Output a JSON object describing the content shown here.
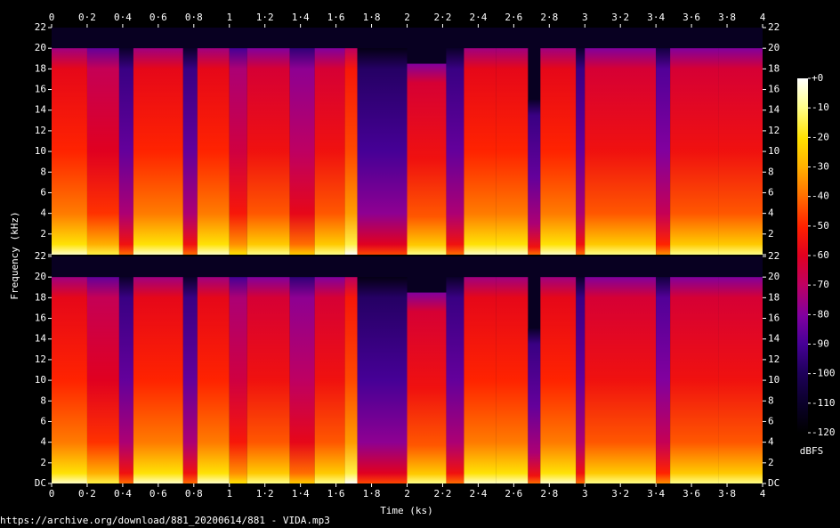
{
  "chart_data": {
    "type": "spectrogram",
    "xlabel": "Time (ks)",
    "ylabel": "Frequency (kHz)",
    "colorbar_label": "dBFS",
    "footer": "https://archive.org/download/881_20200614/881 - VIDA.mp3",
    "xlim": [
      0,
      4
    ],
    "xticks": [
      0,
      {
        "value": 0.2,
        "label": "0·2"
      },
      {
        "value": 0.4,
        "label": "0·4"
      },
      {
        "value": 0.6,
        "label": "0·6"
      },
      {
        "value": 0.8,
        "label": "0·8"
      },
      1,
      {
        "value": 1.2,
        "label": "1·2"
      },
      {
        "value": 1.4,
        "label": "1·4"
      },
      {
        "value": 1.6,
        "label": "1·6"
      },
      {
        "value": 1.8,
        "label": "1·8"
      },
      2,
      {
        "value": 2.2,
        "label": "2·2"
      },
      {
        "value": 2.4,
        "label": "2·4"
      },
      {
        "value": 2.6,
        "label": "2·6"
      },
      {
        "value": 2.8,
        "label": "2·8"
      },
      3,
      {
        "value": 3.2,
        "label": "3·2"
      },
      {
        "value": 3.4,
        "label": "3·4"
      },
      {
        "value": 3.6,
        "label": "3·6"
      },
      {
        "value": 3.8,
        "label": "3·8"
      },
      4
    ],
    "ylim": [
      0,
      22
    ],
    "yticks": [
      {
        "value": 0,
        "label": "DC"
      },
      2,
      4,
      6,
      8,
      10,
      12,
      14,
      16,
      18,
      20,
      22
    ],
    "zlim": [
      -120,
      0
    ],
    "zticks": [
      {
        "value": 0,
        "label": "+0"
      },
      -10,
      -20,
      -30,
      -40,
      -50,
      -60,
      -70,
      -80,
      -90,
      -100,
      -110,
      -120
    ],
    "segment_edges": [
      0,
      0.2,
      0.38,
      0.46,
      0.74,
      0.82,
      1.0,
      1.1,
      1.34,
      1.48,
      1.65,
      1.72,
      2.0,
      2.22,
      2.32,
      2.5,
      2.68,
      2.75,
      2.95,
      3.0,
      3.4,
      3.48,
      3.75,
      4
    ],
    "levels": [
      -50,
      -60,
      -85,
      -50,
      -85,
      -50,
      -65,
      -55,
      -70,
      -55,
      -45,
      -90,
      -55,
      -85,
      -50,
      -50,
      -85,
      -50,
      -85,
      -55,
      -80,
      -55,
      -55
    ],
    "cutoffs": [
      20,
      20,
      20,
      20,
      20,
      20,
      20,
      20,
      20,
      20,
      20,
      20,
      18.5,
      20,
      20,
      20,
      15,
      20,
      20,
      20,
      20,
      20,
      20
    ]
  }
}
